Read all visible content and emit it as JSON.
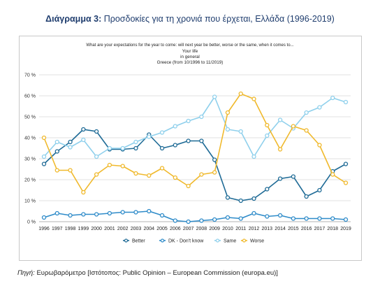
{
  "heading": {
    "prefix": "Διάγραμμα 3:",
    "text": "Προσδοκίες για τη χρονιά που έρχεται, Ελλάδα (1996-2019)"
  },
  "source": {
    "label": "Πηγή:",
    "text": "Ευρωβαρόμετρο [Ιστότοπος: Public Opinion – European Commission (europa.eu)]"
  },
  "chart_data": {
    "type": "line",
    "title_lines": [
      "What are your expectations for the year to come: will next year be better, worse or the same, when it comes to...",
      "Your life",
      "in general",
      "Greece (from 10/1996 to 11/2019)"
    ],
    "xlabel": "",
    "ylabel": "",
    "ylim": [
      0,
      70
    ],
    "yticks": [
      "0 %",
      "10 %",
      "20 %",
      "30 %",
      "40 %",
      "50 %",
      "60 %",
      "70 %"
    ],
    "grid": true,
    "legend_position": "bottom",
    "x": [
      "1996",
      "1997",
      "1998",
      "1999",
      "2000",
      "2001",
      "2002",
      "2003",
      "2004",
      "2005",
      "2006",
      "2007",
      "2008",
      "2009",
      "2010",
      "2011",
      "2012",
      "2013",
      "2014",
      "2015",
      "2016",
      "2017",
      "2018",
      "2019"
    ],
    "series": [
      {
        "name": "Better",
        "color": "#1f6b96",
        "values": [
          27.5,
          33.5,
          38,
          44,
          43,
          34.5,
          34.5,
          35,
          41.5,
          35,
          36.5,
          38.5,
          38.5,
          29.5,
          11.5,
          10,
          11,
          15.5,
          20.5,
          21.5,
          12,
          15,
          24,
          27.5
        ]
      },
      {
        "name": "DK - Don't know",
        "color": "#2e8bc9",
        "values": [
          2,
          4,
          3,
          3.5,
          3.5,
          4,
          4.5,
          4.5,
          5,
          3,
          0.5,
          0,
          0.5,
          1,
          2,
          1.5,
          4,
          2.5,
          3,
          1.5,
          1.5,
          1.5,
          1.5,
          1
        ]
      },
      {
        "name": "Same",
        "color": "#8fd0ec",
        "values": [
          31,
          38,
          35.5,
          39,
          31,
          35,
          35,
          38,
          40.5,
          42.5,
          45.5,
          48,
          50,
          59.5,
          44,
          43,
          31,
          41,
          48.5,
          44.5,
          52,
          54.5,
          59,
          57
        ]
      },
      {
        "name": "Worse",
        "color": "#f0b92c",
        "values": [
          40,
          24.5,
          24.5,
          14,
          22.5,
          27,
          26.5,
          23,
          22,
          25.5,
          21,
          17,
          22.5,
          23.5,
          52,
          61,
          58.5,
          46,
          34.5,
          45.5,
          43.5,
          36.5,
          22.5,
          18.5
        ]
      }
    ]
  }
}
